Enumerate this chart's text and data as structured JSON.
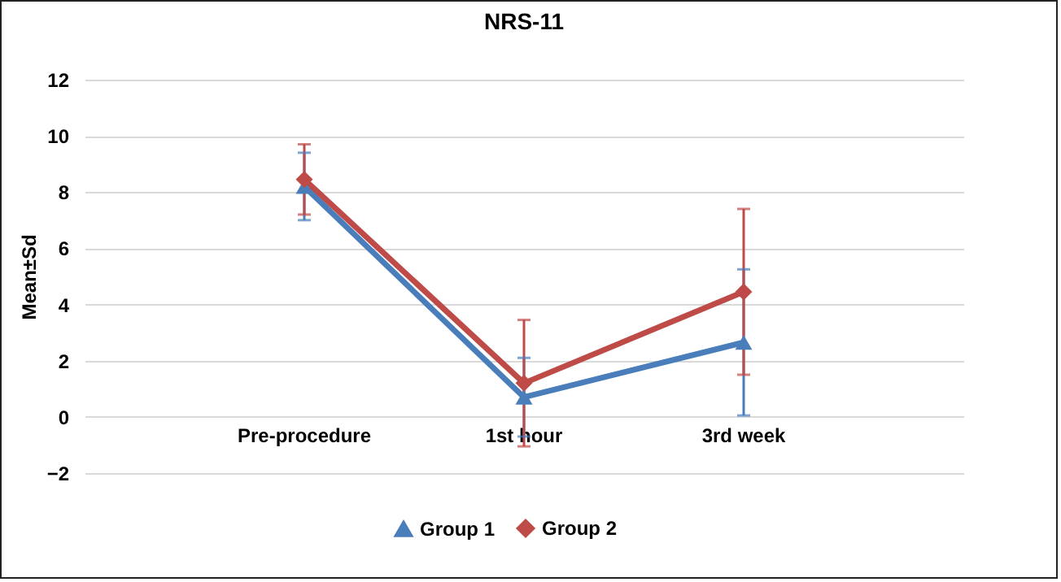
{
  "chart_data": {
    "type": "line",
    "title": "NRS-11",
    "ylabel": "Mean±Sd",
    "categories": [
      "Pre-procedure",
      "1st hour",
      "3rd week"
    ],
    "series": [
      {
        "name": "Group 1",
        "color": "#4a7ebb",
        "marker": "triangle",
        "values": [
          8.2,
          0.7,
          2.65
        ],
        "errors": [
          1.2,
          1.4,
          2.6
        ]
      },
      {
        "name": "Group 2",
        "color": "#be4b48",
        "marker": "diamond",
        "values": [
          8.45,
          1.2,
          4.45
        ],
        "errors": [
          1.25,
          2.25,
          2.95
        ]
      }
    ],
    "ylim": [
      -2,
      12
    ],
    "yticks": [
      -2,
      0,
      2,
      4,
      6,
      8,
      10,
      12
    ],
    "grid": "y",
    "legend": "bottom",
    "line_style": "solid"
  }
}
